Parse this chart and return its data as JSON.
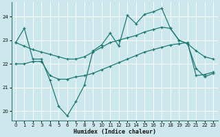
{
  "xlabel": "Humidex (Indice chaleur)",
  "bg_color": "#cce8ec",
  "grid_color": "#ffffff",
  "line_color": "#1e7872",
  "xlim": [
    -0.5,
    23.5
  ],
  "ylim": [
    19.6,
    24.6
  ],
  "yticks": [
    20,
    21,
    22,
    23,
    24
  ],
  "xticks": [
    0,
    1,
    2,
    3,
    4,
    5,
    6,
    7,
    8,
    9,
    10,
    11,
    12,
    13,
    14,
    15,
    16,
    17,
    18,
    19,
    20,
    21,
    22,
    23
  ],
  "line1_x": [
    0,
    1,
    2,
    3,
    4,
    5,
    6,
    7,
    8,
    9,
    10,
    11,
    12,
    13,
    14,
    15,
    16,
    17,
    18,
    19,
    20,
    21,
    22,
    23
  ],
  "line1_y": [
    22.9,
    23.5,
    22.2,
    22.2,
    21.3,
    20.2,
    19.8,
    20.4,
    21.1,
    22.55,
    22.8,
    23.3,
    22.75,
    24.05,
    23.7,
    24.1,
    24.2,
    24.35,
    23.5,
    23.0,
    22.85,
    21.8,
    21.45,
    21.6
  ],
  "line2_x": [
    0,
    1,
    2,
    3,
    4,
    5,
    6,
    7,
    8,
    9,
    10,
    11,
    12,
    13,
    14,
    15,
    16,
    17,
    18,
    19,
    20,
    21,
    22,
    23
  ],
  "line2_y": [
    22.9,
    22.75,
    22.6,
    22.5,
    22.4,
    22.3,
    22.2,
    22.2,
    22.3,
    22.5,
    22.7,
    22.9,
    23.0,
    23.1,
    23.2,
    23.35,
    23.45,
    23.55,
    23.5,
    23.0,
    22.85,
    22.55,
    22.3,
    22.2
  ],
  "line3_x": [
    0,
    1,
    2,
    3,
    4,
    5,
    6,
    7,
    8,
    9,
    10,
    11,
    12,
    13,
    14,
    15,
    16,
    17,
    18,
    19,
    20,
    21,
    22,
    23
  ],
  "line3_y": [
    22.0,
    22.0,
    22.1,
    22.1,
    21.5,
    21.35,
    21.35,
    21.45,
    21.5,
    21.6,
    21.75,
    21.9,
    22.05,
    22.2,
    22.35,
    22.5,
    22.6,
    22.7,
    22.8,
    22.85,
    22.9,
    21.5,
    21.55,
    21.65
  ]
}
